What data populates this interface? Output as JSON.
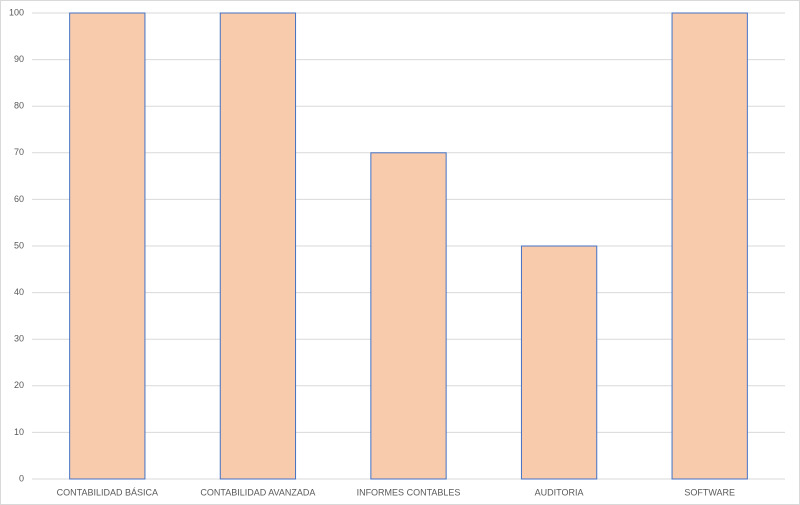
{
  "chart_data": {
    "type": "bar",
    "categories": [
      "CONTABILIDAD BÁSICA",
      "CONTABILIDAD AVANZADA",
      "INFORMES CONTABLES",
      "AUDITORIA",
      "SOFTWARE"
    ],
    "values": [
      100,
      100,
      70,
      50,
      100
    ],
    "color": "#f8cbad",
    "ylim": [
      0,
      100
    ],
    "yticks": [
      0,
      10,
      20,
      30,
      40,
      50,
      60,
      70,
      80,
      90,
      100
    ],
    "grid": true
  }
}
